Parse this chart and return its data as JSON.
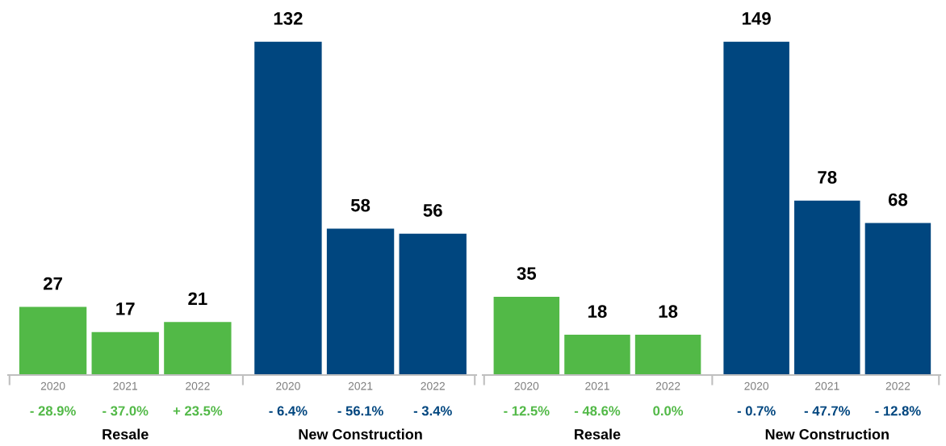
{
  "chart_data": [
    {
      "type": "bar",
      "categories": [
        "2020",
        "2021",
        "2022",
        "2020",
        "2021",
        "2022"
      ],
      "data_labels": true,
      "series": [
        {
          "color": "#52b947",
          "values": [
            27,
            17,
            21,
            null,
            null,
            null
          ]
        },
        {
          "color": "#00467f",
          "values": [
            null,
            null,
            null,
            132,
            58,
            56
          ]
        }
      ],
      "annotations": [
        "- 28.9%",
        "- 37.0%",
        "+ 23.5%",
        "- 6.4%",
        "- 56.1%",
        "- 3.4%",
        "Resale",
        "New Construction"
      ]
    },
    {
      "type": "bar",
      "categories": [
        "2020",
        "2021",
        "2022",
        "2020",
        "2021",
        "2022"
      ],
      "data_labels": true,
      "series": [
        {
          "color": "#52b947",
          "values": [
            35,
            18,
            18,
            null,
            null,
            null
          ]
        },
        {
          "color": "#00467f",
          "values": [
            null,
            null,
            null,
            149,
            78,
            68
          ]
        }
      ],
      "annotations": [
        "- 12.5%",
        "- 48.6%",
        "0.0%",
        "- 0.7%",
        "- 47.7%",
        "- 12.8%",
        "Resale",
        "New Construction"
      ]
    }
  ]
}
